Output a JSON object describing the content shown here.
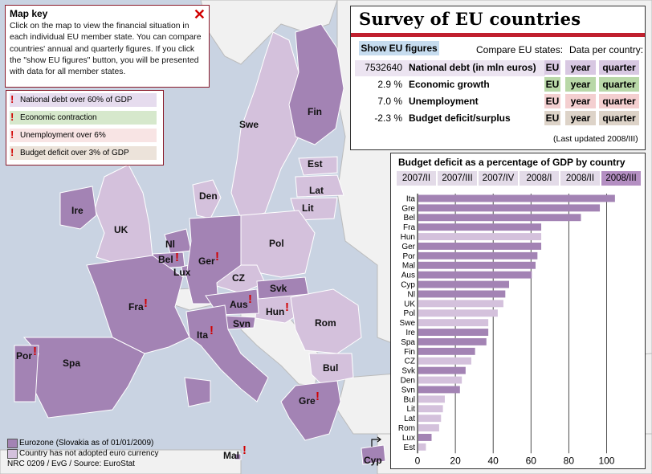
{
  "map_key": {
    "title": "Map key",
    "description": "Click on the map to view the financial situation in each individual EU member state. You can compare countries' annual and quarterly figures. If you click the \"show EU figures\" button, you will be presented with data for all member states.",
    "close_icon": "close-icon"
  },
  "criteria_legend": [
    {
      "text": "National debt over 60% of GDP",
      "color": "#e6dcee"
    },
    {
      "text": "Economic contraction",
      "color": "#d6e8cc"
    },
    {
      "text": "Unemployment over 6%",
      "color": "#f8e4e4"
    },
    {
      "text": "Budget deficit over 3% of GDP",
      "color": "#ece3da"
    }
  ],
  "map_legend": {
    "eurozone": "Eurozone (Slovakia as of 01/01/2009)",
    "non_euro": "Country has not adopted euro currency",
    "source": "NRC 0209 / EvG / Source: EuroStat",
    "eurozone_color": "#a383b4",
    "non_euro_color": "#d4c1dc"
  },
  "countries": {
    "fin": "Fin",
    "swe": "Swe",
    "est": "Est",
    "lat": "Lat",
    "lit": "Lit",
    "den": "Den",
    "ire": "Ire",
    "uk": "UK",
    "nl": "Nl",
    "bel": "Bel",
    "lux": "Lux",
    "ger": "Ger",
    "pol": "Pol",
    "cz": "CZ",
    "svk": "Svk",
    "aus": "Aus",
    "hun": "Hun",
    "svn": "Svn",
    "fra": "Fra",
    "rom": "Rom",
    "bul": "Bul",
    "ita": "Ita",
    "por": "Por",
    "spa": "Spa",
    "gre": "Gre",
    "mal": "Mal",
    "cyp": "Cyp"
  },
  "warning_glyph": "!",
  "survey": {
    "title": "Survey of EU countries",
    "show_eu_button": "Show EU figures",
    "compare_label": "Compare EU states:",
    "data_per_label": "Data per country:",
    "rows": [
      {
        "value": "7532640",
        "label": "National debt (in mln euros)",
        "eu": "EU",
        "year": "year",
        "quarter": "quarter",
        "color": "#d8c8e2",
        "bg": "#ece4f1"
      },
      {
        "value": "2.9 %",
        "label": "Economic growth",
        "eu": "EU",
        "year": "year",
        "quarter": "quarter",
        "color": "#b9d8a8",
        "bg": "#ffffff"
      },
      {
        "value": "7.0 %",
        "label": "Unemployment",
        "eu": "EU",
        "year": "year",
        "quarter": "quarter",
        "color": "#f4cfd0",
        "bg": "#ffffff"
      },
      {
        "value": "-2.3 %",
        "label": "Budget deficit/surplus",
        "eu": "EU",
        "year": "year",
        "quarter": "quarter",
        "color": "#ddd3c8",
        "bg": "#ffffff"
      }
    ],
    "updated": "(Last updated 2008/III)"
  },
  "deficit_tabs": [
    "2007/II",
    "2007/III",
    "2007/IV",
    "2008/I",
    "2008/II",
    "2008/III"
  ],
  "deficit_selected": 5,
  "chart_data": {
    "type": "bar",
    "title": "Budget deficit as a percentage of GDP by country",
    "categories": [
      "Ita",
      "Gre",
      "Bel",
      "Fra",
      "Hun",
      "Ger",
      "Por",
      "Mal",
      "Aus",
      "Cyp",
      "Nl",
      "UK",
      "Pol",
      "Swe",
      "Ire",
      "Spa",
      "Fin",
      "CZ",
      "Svk",
      "Den",
      "Svn",
      "Bul",
      "Lit",
      "Lat",
      "Rom",
      "Lux",
      "Est"
    ],
    "values": [
      104,
      96,
      86,
      65,
      65,
      65,
      63,
      62,
      60,
      48,
      46,
      45,
      42,
      37,
      37,
      36,
      30,
      28,
      25,
      23,
      22,
      14,
      13,
      12,
      11,
      7,
      4
    ],
    "eurozone": [
      true,
      true,
      true,
      true,
      false,
      true,
      true,
      true,
      true,
      true,
      true,
      false,
      false,
      false,
      true,
      true,
      true,
      false,
      true,
      false,
      true,
      false,
      false,
      false,
      false,
      true,
      false
    ],
    "xticks": [
      0,
      20,
      40,
      60,
      80,
      100
    ],
    "xlim": [
      0,
      110
    ],
    "grid": true,
    "orientation": "horizontal"
  }
}
